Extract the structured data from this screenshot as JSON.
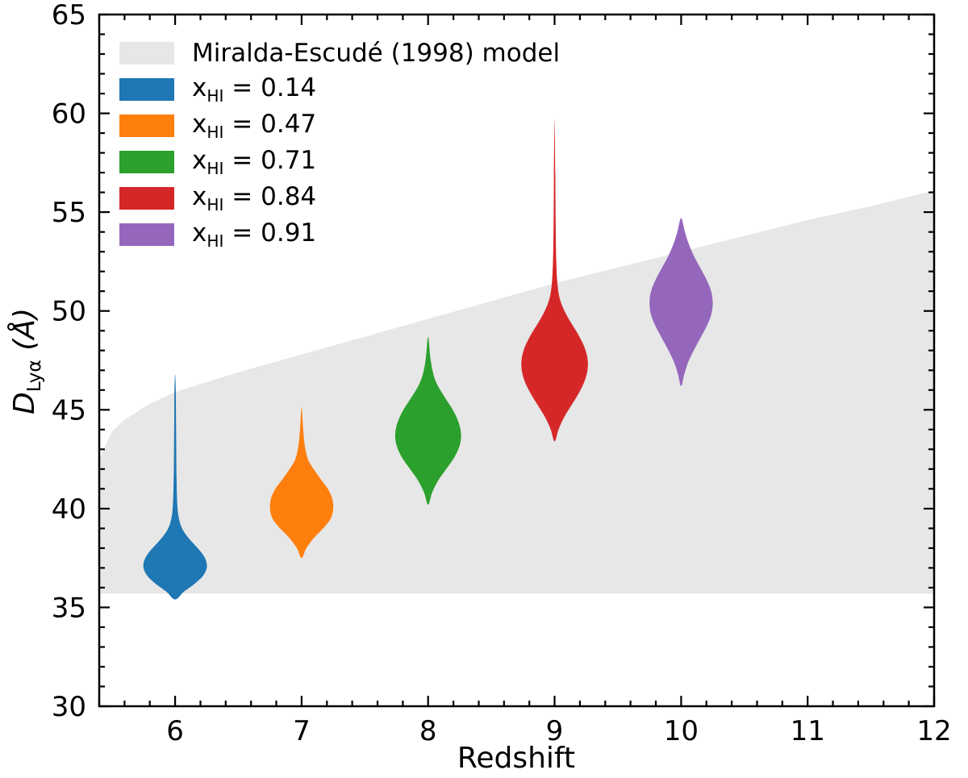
{
  "figure": {
    "background": "#ffffff"
  },
  "labels": {
    "x_axis": "Redshift",
    "y_main": "D",
    "y_sub": "Lyα",
    "y_unit": " (Å)"
  },
  "legend": {
    "model": {
      "label": "Miralda-Escudé (1998) model",
      "color": "#e7e7e7"
    },
    "items": [
      {
        "prefix": "x",
        "sub": "HI",
        "rest": " = 0.14",
        "color": "#1f77b4"
      },
      {
        "prefix": "x",
        "sub": "HI",
        "rest": " = 0.47",
        "color": "#ff7f0e"
      },
      {
        "prefix": "x",
        "sub": "HI",
        "rest": " = 0.71",
        "color": "#2ca02c"
      },
      {
        "prefix": "x",
        "sub": "HI",
        "rest": " = 0.84",
        "color": "#d62728"
      },
      {
        "prefix": "x",
        "sub": "HI",
        "rest": " = 0.91",
        "color": "#9467bd"
      }
    ]
  },
  "chart_data": {
    "type": "violin",
    "title": "",
    "xlabel": "Redshift",
    "ylabel": "D_Lyα (Å)",
    "xlim": [
      5.4,
      12
    ],
    "ylim": [
      30,
      65
    ],
    "xticks": [
      6,
      7,
      8,
      9,
      10,
      11,
      12
    ],
    "yticks": [
      30,
      35,
      40,
      45,
      50,
      55,
      60,
      65
    ],
    "x_minor_step": 0.2,
    "y_minor_step": 1,
    "grid": false,
    "legend_position": "upper left",
    "band": {
      "label": "Miralda-Escudé (1998) model",
      "color": "#e7e7e7",
      "lower": 35.7,
      "upper": [
        [
          5.4,
          42.5
        ],
        [
          5.5,
          43.9
        ],
        [
          5.6,
          44.5
        ],
        [
          5.8,
          45.3
        ],
        [
          6.0,
          45.9
        ],
        [
          6.25,
          46.4
        ],
        [
          6.5,
          46.9
        ],
        [
          7.0,
          47.8
        ],
        [
          7.5,
          48.7
        ],
        [
          8.0,
          49.6
        ],
        [
          8.5,
          50.5
        ],
        [
          9.0,
          51.4
        ],
        [
          9.5,
          52.2
        ],
        [
          10.0,
          53.0
        ],
        [
          10.5,
          53.8
        ],
        [
          11.0,
          54.6
        ],
        [
          11.5,
          55.3
        ],
        [
          12.0,
          56.1
        ]
      ]
    },
    "violins": [
      {
        "x": 6,
        "label": "x_HI = 0.14",
        "color": "#1f77b4",
        "half_width": 0.25,
        "median_approx": 37.2,
        "range": [
          35.4,
          46.8
        ],
        "profile": [
          [
            35.4,
            0
          ],
          [
            35.8,
            0.28
          ],
          [
            36.2,
            0.62
          ],
          [
            36.6,
            0.88
          ],
          [
            37.0,
            1.0
          ],
          [
            37.4,
            0.97
          ],
          [
            37.8,
            0.82
          ],
          [
            38.2,
            0.6
          ],
          [
            38.6,
            0.38
          ],
          [
            39.0,
            0.22
          ],
          [
            39.5,
            0.12
          ],
          [
            40.2,
            0.07
          ],
          [
            41.5,
            0.045
          ],
          [
            43.0,
            0.035
          ],
          [
            44.5,
            0.028
          ],
          [
            46.0,
            0.02
          ],
          [
            46.8,
            0
          ]
        ]
      },
      {
        "x": 7,
        "label": "x_HI = 0.47",
        "color": "#ff7f0e",
        "half_width": 0.25,
        "median_approx": 40.2,
        "range": [
          37.5,
          45.1
        ],
        "profile": [
          [
            37.5,
            0
          ],
          [
            38.0,
            0.15
          ],
          [
            38.5,
            0.38
          ],
          [
            39.0,
            0.68
          ],
          [
            39.5,
            0.92
          ],
          [
            40.0,
            1.0
          ],
          [
            40.5,
            0.97
          ],
          [
            41.0,
            0.83
          ],
          [
            41.5,
            0.6
          ],
          [
            42.0,
            0.38
          ],
          [
            42.5,
            0.2
          ],
          [
            43.2,
            0.1
          ],
          [
            44.0,
            0.05
          ],
          [
            45.1,
            0
          ]
        ]
      },
      {
        "x": 8,
        "label": "x_HI = 0.71",
        "color": "#2ca02c",
        "half_width": 0.26,
        "median_approx": 43.8,
        "range": [
          40.2,
          48.7
        ],
        "profile": [
          [
            40.2,
            0
          ],
          [
            40.8,
            0.12
          ],
          [
            41.4,
            0.3
          ],
          [
            42.0,
            0.55
          ],
          [
            42.6,
            0.8
          ],
          [
            43.2,
            0.96
          ],
          [
            43.8,
            1.0
          ],
          [
            44.4,
            0.92
          ],
          [
            45.0,
            0.75
          ],
          [
            45.6,
            0.52
          ],
          [
            46.2,
            0.3
          ],
          [
            46.8,
            0.16
          ],
          [
            47.6,
            0.07
          ],
          [
            48.7,
            0
          ]
        ]
      },
      {
        "x": 9,
        "label": "x_HI = 0.84",
        "color": "#d62728",
        "half_width": 0.26,
        "median_approx": 47.5,
        "range": [
          43.4,
          59.7
        ],
        "profile": [
          [
            43.4,
            0
          ],
          [
            44.0,
            0.12
          ],
          [
            44.6,
            0.28
          ],
          [
            45.2,
            0.5
          ],
          [
            45.8,
            0.72
          ],
          [
            46.4,
            0.9
          ],
          [
            47.0,
            1.0
          ],
          [
            47.6,
            1.0
          ],
          [
            48.2,
            0.9
          ],
          [
            48.8,
            0.72
          ],
          [
            49.4,
            0.5
          ],
          [
            50.0,
            0.3
          ],
          [
            50.6,
            0.16
          ],
          [
            51.3,
            0.09
          ],
          [
            52.5,
            0.05
          ],
          [
            54.5,
            0.03
          ],
          [
            57.0,
            0.02
          ],
          [
            59.7,
            0
          ]
        ]
      },
      {
        "x": 10,
        "label": "x_HI = 0.91",
        "color": "#9467bd",
        "half_width": 0.25,
        "median_approx": 50.4,
        "range": [
          46.2,
          54.7
        ],
        "profile": [
          [
            46.2,
            0
          ],
          [
            46.8,
            0.1
          ],
          [
            47.4,
            0.22
          ],
          [
            48.0,
            0.4
          ],
          [
            48.6,
            0.6
          ],
          [
            49.2,
            0.8
          ],
          [
            49.8,
            0.95
          ],
          [
            50.4,
            1.0
          ],
          [
            51.0,
            0.95
          ],
          [
            51.6,
            0.8
          ],
          [
            52.2,
            0.6
          ],
          [
            52.8,
            0.4
          ],
          [
            53.4,
            0.24
          ],
          [
            54.0,
            0.12
          ],
          [
            54.7,
            0
          ]
        ]
      }
    ]
  }
}
